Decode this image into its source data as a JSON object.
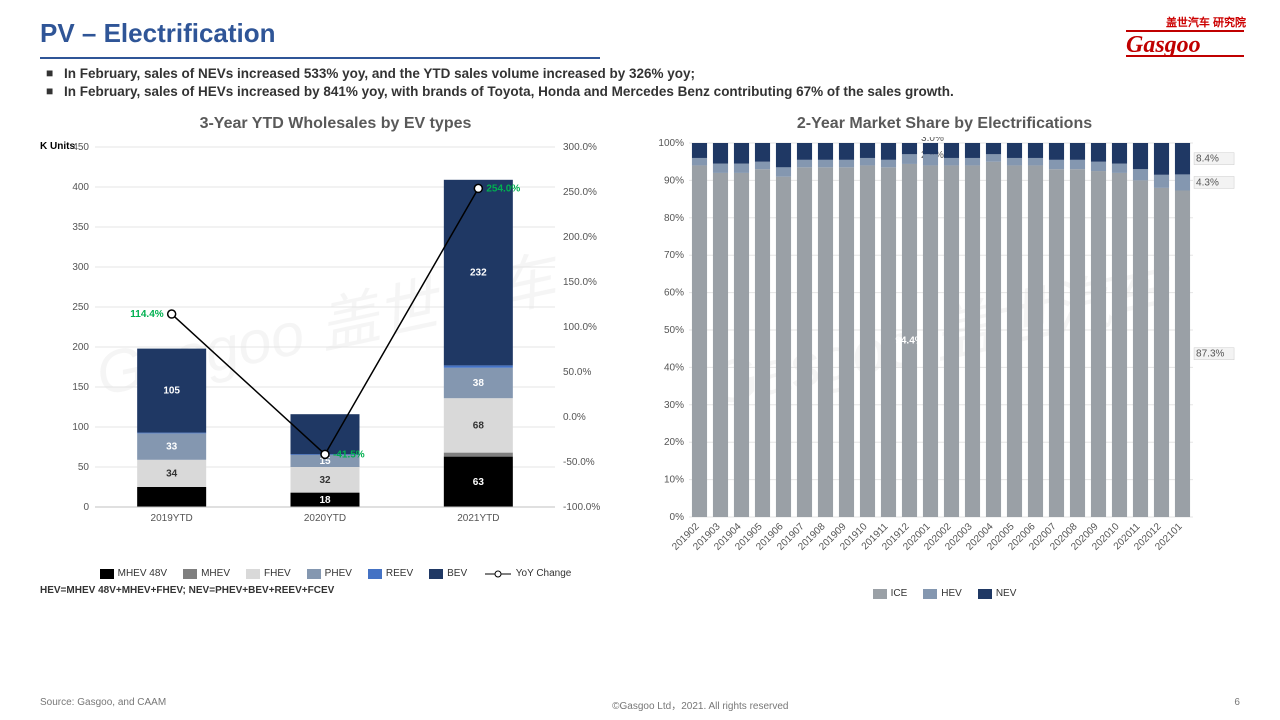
{
  "page": {
    "title": "PV – Electrification",
    "logo_cn": "盖世汽车 研究院",
    "logo_en": "Gasgoo",
    "bullets": [
      "In February, sales of NEVs increased 533% yoy, and the YTD sales volume increased by 326% yoy;",
      "In February, sales of HEVs increased by 841% yoy, with brands of Toyota, Honda and Mercedes Benz contributing 67% of the sales growth."
    ],
    "note_left": "HEV=MHEV 48V+MHEV+FHEV; NEV=PHEV+BEV+REEV+FCEV",
    "source": "Source: Gasgoo, and CAAM",
    "copyright": "©Gasgoo Ltd，2021. All rights reserved",
    "page_number": "6"
  },
  "colors": {
    "title": "#2f5597",
    "series": {
      "MHEV 48V": "#000000",
      "MHEV": "#7f7f7f",
      "FHEV": "#d9d9d9",
      "PHEV": "#8497b0",
      "REEV": "#4472c4",
      "BEV": "#1f3864",
      "ICE": "#9aa0a6",
      "HEV": "#8497b0",
      "NEV": "#1f3864"
    },
    "line_label": "#00b050",
    "line_stroke": "#000000",
    "grid": "#e5e5e5",
    "axis": "#c0c0c0"
  },
  "chart_left": {
    "title": "3-Year YTD Wholesales by EV types",
    "y_axis_label": "K Units",
    "categories": [
      "2019YTD",
      "2020YTD",
      "2021YTD"
    ],
    "series_order": [
      "MHEV 48V",
      "MHEV",
      "FHEV",
      "PHEV",
      "REEV",
      "BEV"
    ],
    "data": {
      "2019YTD": {
        "MHEV 48V": 25,
        "MHEV": 0,
        "FHEV": 34,
        "PHEV": 33,
        "REEV": 1,
        "BEV": 105
      },
      "2020YTD": {
        "MHEV 48V": 18,
        "MHEV": 0,
        "FHEV": 32,
        "PHEV": 15,
        "REEV": 1,
        "BEV": 50
      },
      "2021YTD": {
        "MHEV 48V": 63,
        "MHEV": 5,
        "FHEV": 68,
        "PHEV": 38,
        "REEV": 3,
        "BEV": 232
      }
    },
    "show_value_labels": {
      "2019YTD": [
        "FHEV",
        "PHEV",
        "BEV"
      ],
      "2020YTD": [
        "MHEV 48V",
        "FHEV",
        "PHEV"
      ],
      "2021YTD": [
        "MHEV 48V",
        "FHEV",
        "PHEV",
        "BEV"
      ]
    },
    "y_left": {
      "min": 0,
      "max": 450,
      "step": 50
    },
    "y_right": {
      "min": -100,
      "max": 300,
      "step": 50,
      "suffix": ".0%"
    },
    "line": {
      "name": "YoY Change",
      "points": [
        {
          "cat": "2019YTD",
          "val": 114.4
        },
        {
          "cat": "2020YTD",
          "val": -41.5
        },
        {
          "cat": "2021YTD",
          "val": 254.0
        }
      ]
    },
    "legend": [
      "MHEV 48V",
      "MHEV",
      "FHEV",
      "PHEV",
      "REEV",
      "BEV",
      "YoY Change"
    ]
  },
  "chart_right": {
    "title": "2-Year Market Share by Electrifications",
    "y_axis": {
      "min": 0,
      "max": 100,
      "step": 10,
      "suffix": "%"
    },
    "categories": [
      "201902",
      "201903",
      "201904",
      "201905",
      "201906",
      "201907",
      "201908",
      "201909",
      "201910",
      "201911",
      "201912",
      "202001",
      "202002",
      "202003",
      "202004",
      "202005",
      "202006",
      "202007",
      "202008",
      "202009",
      "202010",
      "202011",
      "202012",
      "202101"
    ],
    "series_order": [
      "ICE",
      "HEV",
      "NEV"
    ],
    "data": [
      {
        "ICE": 94.0,
        "HEV": 2.0,
        "NEV": 4.0
      },
      {
        "ICE": 92.0,
        "HEV": 2.5,
        "NEV": 5.5
      },
      {
        "ICE": 92.0,
        "HEV": 2.5,
        "NEV": 5.5
      },
      {
        "ICE": 93.0,
        "HEV": 2.0,
        "NEV": 5.0
      },
      {
        "ICE": 91.0,
        "HEV": 2.5,
        "NEV": 6.5
      },
      {
        "ICE": 93.5,
        "HEV": 2.0,
        "NEV": 4.5
      },
      {
        "ICE": 93.5,
        "HEV": 2.0,
        "NEV": 4.5
      },
      {
        "ICE": 93.5,
        "HEV": 2.0,
        "NEV": 4.5
      },
      {
        "ICE": 94.0,
        "HEV": 2.0,
        "NEV": 4.0
      },
      {
        "ICE": 93.5,
        "HEV": 2.0,
        "NEV": 4.5
      },
      {
        "ICE": 94.4,
        "HEV": 2.6,
        "NEV": 3.0
      },
      {
        "ICE": 94.0,
        "HEV": 3.0,
        "NEV": 3.0
      },
      {
        "ICE": 94.0,
        "HEV": 2.0,
        "NEV": 4.0
      },
      {
        "ICE": 94.0,
        "HEV": 2.0,
        "NEV": 4.0
      },
      {
        "ICE": 95.0,
        "HEV": 2.0,
        "NEV": 3.0
      },
      {
        "ICE": 94.0,
        "HEV": 2.0,
        "NEV": 4.0
      },
      {
        "ICE": 94.0,
        "HEV": 2.0,
        "NEV": 4.0
      },
      {
        "ICE": 93.0,
        "HEV": 2.5,
        "NEV": 4.5
      },
      {
        "ICE": 93.0,
        "HEV": 2.5,
        "NEV": 4.5
      },
      {
        "ICE": 92.5,
        "HEV": 2.5,
        "NEV": 5.0
      },
      {
        "ICE": 92.0,
        "HEV": 2.5,
        "NEV": 5.5
      },
      {
        "ICE": 90.0,
        "HEV": 3.0,
        "NEV": 7.0
      },
      {
        "ICE": 88.0,
        "HEV": 3.5,
        "NEV": 8.5
      },
      {
        "ICE": 87.3,
        "HEV": 4.3,
        "NEV": 8.4
      }
    ],
    "highlight_index": 10,
    "highlight_labels": {
      "ICE": "94.4%",
      "HEV": "2.6%",
      "NEV": "3.0%"
    },
    "last_labels": {
      "ICE": "87.3%",
      "HEV": "4.3%",
      "NEV": "8.4%"
    },
    "legend": [
      "ICE",
      "HEV",
      "NEV"
    ]
  }
}
